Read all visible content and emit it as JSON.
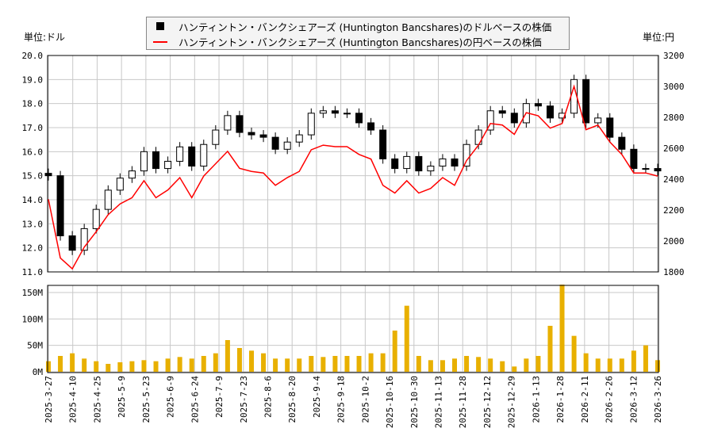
{
  "chart_data": {
    "type": "candlestick+line+bar",
    "legend": [
      {
        "label": "ハンティントン・バンクシェアーズ (Huntington Bancshares)のドルベースの株価",
        "color": "#000000",
        "symbol": "square"
      },
      {
        "label": "ハンティントン・バンクシェアーズ (Huntington Bancshares)の円ベースの株価",
        "color": "#ff0000",
        "symbol": "line"
      }
    ],
    "legend_position": "top-center",
    "left_unit": "単位:ドル",
    "right_unit": "単位:円",
    "left_ylim": [
      11,
      20
    ],
    "left_ticks": [
      "20.0",
      "19.0",
      "18.0",
      "17.0",
      "16.0",
      "15.0",
      "14.0",
      "13.0",
      "12.0",
      "11.0"
    ],
    "right_ylim": [
      1800,
      3200
    ],
    "right_ticks": [
      "3200",
      "3000",
      "2800",
      "2600",
      "2400",
      "2200",
      "2000",
      "1800"
    ],
    "volume_ylim": [
      0,
      165
    ],
    "volume_ticks": [
      "0M",
      "50M",
      "100M",
      "150M"
    ],
    "x_tick_labels": [
      "2025-3-27",
      "2025-4-10",
      "2025-4-25",
      "2025-5-9",
      "2025-5-23",
      "2025-6-9",
      "2025-6-24",
      "2025-7-9",
      "2025-7-23",
      "2025-8-6",
      "2025-8-20",
      "2025-9-4",
      "2025-9-18",
      "2025-10-2",
      "2025-10-16",
      "2025-10-30",
      "2025-11-13",
      "2025-11-28",
      "2025-12-12",
      "2025-12-29",
      "2026-1-13",
      "2026-1-28",
      "2026-2-11",
      "2026-2-26",
      "2026-3-12",
      "2026-3-26"
    ],
    "usd_close": [
      15.0,
      12.5,
      11.9,
      12.8,
      13.6,
      14.4,
      14.9,
      15.2,
      16.0,
      15.3,
      15.6,
      16.2,
      15.4,
      16.3,
      16.9,
      17.5,
      16.8,
      16.7,
      16.6,
      16.1,
      16.4,
      16.7,
      17.6,
      17.7,
      17.6,
      17.6,
      17.2,
      16.9,
      15.7,
      15.3,
      15.8,
      15.2,
      15.4,
      15.7,
      15.4,
      16.3,
      16.9,
      17.7,
      17.6,
      17.2,
      18.0,
      17.9,
      17.4,
      17.6,
      19.0,
      17.2,
      17.4,
      16.6,
      16.1,
      15.3,
      15.3,
      15.2
    ],
    "jpy_close": [
      2270,
      1890,
      1820,
      1960,
      2060,
      2170,
      2240,
      2280,
      2390,
      2280,
      2330,
      2410,
      2280,
      2420,
      2500,
      2580,
      2470,
      2450,
      2440,
      2360,
      2410,
      2450,
      2590,
      2620,
      2610,
      2610,
      2560,
      2530,
      2360,
      2310,
      2390,
      2310,
      2340,
      2410,
      2360,
      2520,
      2620,
      2760,
      2750,
      2690,
      2830,
      2810,
      2730,
      2760,
      3000,
      2720,
      2750,
      2640,
      2560,
      2440,
      2440,
      2420
    ],
    "volume_millions": [
      20,
      30,
      35,
      25,
      20,
      15,
      18,
      20,
      22,
      20,
      25,
      28,
      25,
      30,
      35,
      60,
      45,
      40,
      35,
      25,
      25,
      25,
      30,
      28,
      30,
      30,
      30,
      35,
      35,
      78,
      125,
      30,
      22,
      22,
      25,
      30,
      28,
      25,
      20,
      10,
      25,
      30,
      87,
      165,
      68,
      35,
      25,
      25,
      25,
      40,
      50,
      22
    ],
    "colors": {
      "candle": "#000000",
      "jpy_line": "#ff0000",
      "volume": "#e8b000",
      "grid": "#c8c8c8"
    }
  }
}
